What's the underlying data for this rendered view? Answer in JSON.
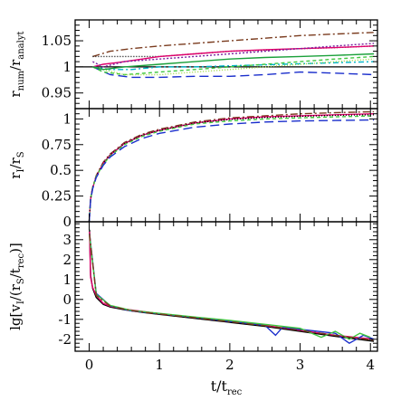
{
  "chart_data": {
    "type": "line",
    "layout": "three vertically stacked panels sharing the x axis",
    "xlabel": "t/t",
    "xlabel_sub": "rec",
    "x_range": [
      -0.2,
      4.1
    ],
    "x_ticks": [
      "0",
      "1",
      "2",
      "3",
      "4"
    ],
    "x_tick_values": [
      0,
      1,
      2,
      3,
      4
    ],
    "panels": [
      {
        "id": "top",
        "ylabel_parts": [
          "r",
          "num",
          "/r",
          "analyt"
        ],
        "y_range": [
          0.92,
          1.09
        ],
        "y_ticks": [
          "0.95",
          "1",
          "1.05"
        ],
        "y_tick_values": [
          0.95,
          1.0,
          1.05
        ],
        "reference_line": 1.0,
        "series": [
          {
            "color": "#7a3b1e",
            "dash": "8 3 2 3",
            "x": [
              0.05,
              0.3,
              0.6,
              1,
              1.5,
              2,
              2.5,
              3,
              3.5,
              4.05
            ],
            "y": [
              1.02,
              1.03,
              1.035,
              1.04,
              1.045,
              1.05,
              1.055,
              1.06,
              1.063,
              1.066
            ]
          },
          {
            "color": "#000000",
            "dash": "1 2",
            "x": [
              0.05,
              0.2,
              0.5,
              1,
              1.5,
              2,
              2.5,
              3,
              3.5,
              4.05
            ],
            "y": [
              1.02,
              1.02,
              1.02,
              1.02,
              1.025,
              1.03,
              1.032,
              1.035,
              1.037,
              1.04
            ]
          },
          {
            "color": "#e0006c",
            "dash": "",
            "x": [
              0.05,
              0.2,
              0.5,
              1,
              1.5,
              2,
              2.5,
              3,
              3.5,
              4.05
            ],
            "y": [
              1.0,
              1.005,
              1.01,
              1.02,
              1.025,
              1.03,
              1.033,
              1.035,
              1.037,
              1.04
            ]
          },
          {
            "color": "#7a1ea0",
            "dash": "2 2",
            "x": [
              0.05,
              0.2,
              0.5,
              1,
              1.5,
              2,
              2.5,
              3,
              3.5,
              4.05
            ],
            "y": [
              1.01,
              1.0,
              1.01,
              1.015,
              1.02,
              1.025,
              1.03,
              1.035,
              1.04,
              1.045
            ]
          },
          {
            "color": "#1a2ecc",
            "dash": "10 5",
            "x": [
              0.05,
              0.3,
              0.6,
              1,
              1.5,
              2,
              2.5,
              3,
              3.5,
              4.05
            ],
            "y": [
              1.0,
              0.985,
              0.98,
              0.98,
              0.982,
              0.982,
              0.985,
              0.99,
              0.988,
              0.985
            ]
          },
          {
            "color": "#00b4c8",
            "dash": "6 3 2 3",
            "x": [
              0.05,
              0.3,
              0.6,
              1,
              1.5,
              2,
              2.5,
              3,
              3.5,
              4.05
            ],
            "y": [
              1.0,
              0.995,
              0.995,
              1.0,
              1.0,
              1.002,
              1.004,
              1.006,
              1.008,
              1.01
            ]
          },
          {
            "color": "#40c840",
            "dash": "4 3",
            "x": [
              0.05,
              0.2,
              0.5,
              1,
              1.5,
              2,
              2.5,
              3,
              3.5,
              4.05
            ],
            "y": [
              1.0,
              0.99,
              0.985,
              0.99,
              0.995,
              1.0,
              1.005,
              1.01,
              1.015,
              1.02
            ]
          },
          {
            "color": "#9ad83a",
            "dash": "1 2",
            "x": [
              0.05,
              0.2,
              0.5,
              1,
              1.5,
              2,
              2.5,
              3,
              3.5,
              4.05
            ],
            "y": [
              1.0,
              0.995,
              0.985,
              0.985,
              0.99,
              0.995,
              1.0,
              1.005,
              1.01,
              1.015
            ]
          },
          {
            "color": "#1aa03a",
            "dash": "",
            "x": [
              0.05,
              0.2,
              0.5,
              1,
              1.5,
              2,
              2.5,
              3,
              3.5,
              4.05
            ],
            "y": [
              1.0,
              0.995,
              1.0,
              1.005,
              1.01,
              1.015,
              1.018,
              1.02,
              1.022,
              1.025
            ]
          }
        ]
      },
      {
        "id": "middle",
        "ylabel_parts": [
          "r",
          "I",
          "/r",
          "S"
        ],
        "y_range": [
          0.0,
          1.1
        ],
        "y_ticks": [
          "0",
          "0.25",
          "0.5",
          "0.75",
          "1"
        ],
        "y_tick_values": [
          0,
          0.25,
          0.5,
          0.75,
          1.0
        ],
        "series": [
          {
            "color": "#7a3b1e",
            "dash": "8 3 2 3",
            "x": [
              0,
              0.02,
              0.05,
              0.1,
              0.2,
              0.3,
              0.5,
              0.75,
              1,
              1.5,
              2,
              2.5,
              3,
              3.5,
              4.05
            ],
            "y": [
              0,
              0.23,
              0.34,
              0.45,
              0.58,
              0.66,
              0.77,
              0.85,
              0.9,
              0.97,
              1.01,
              1.03,
              1.05,
              1.06,
              1.07
            ]
          },
          {
            "color": "#e0006c",
            "dash": "",
            "x": [
              0,
              0.02,
              0.05,
              0.1,
              0.2,
              0.3,
              0.5,
              0.75,
              1,
              1.5,
              2,
              2.5,
              3,
              3.5,
              4.05
            ],
            "y": [
              0,
              0.22,
              0.33,
              0.44,
              0.57,
              0.65,
              0.76,
              0.84,
              0.89,
              0.96,
              1.0,
              1.02,
              1.03,
              1.04,
              1.05
            ]
          },
          {
            "color": "#000000",
            "dash": "1 2",
            "x": [
              0,
              0.02,
              0.05,
              0.1,
              0.2,
              0.3,
              0.5,
              0.75,
              1,
              1.5,
              2,
              2.5,
              3,
              3.5,
              4.05
            ],
            "y": [
              0,
              0.22,
              0.33,
              0.44,
              0.57,
              0.65,
              0.76,
              0.84,
              0.89,
              0.96,
              0.995,
              1.015,
              1.025,
              1.035,
              1.04
            ]
          },
          {
            "color": "#40c840",
            "dash": "4 3",
            "x": [
              0,
              0.02,
              0.05,
              0.1,
              0.2,
              0.3,
              0.5,
              0.75,
              1,
              1.5,
              2,
              2.5,
              3,
              3.5,
              4.05
            ],
            "y": [
              0,
              0.22,
              0.33,
              0.44,
              0.56,
              0.64,
              0.75,
              0.83,
              0.88,
              0.95,
              0.98,
              1.0,
              1.01,
              1.02,
              1.03
            ]
          },
          {
            "color": "#1a2ecc",
            "dash": "10 5",
            "x": [
              0,
              0.02,
              0.05,
              0.1,
              0.2,
              0.3,
              0.5,
              0.75,
              1,
              1.5,
              2,
              2.5,
              3,
              3.5,
              4.05
            ],
            "y": [
              0,
              0.21,
              0.32,
              0.43,
              0.55,
              0.63,
              0.73,
              0.81,
              0.86,
              0.92,
              0.95,
              0.97,
              0.98,
              0.985,
              0.99
            ]
          }
        ]
      },
      {
        "id": "bottom",
        "ylabel_parts": [
          "lg[v",
          "I",
          "/(r",
          "S",
          "/t",
          "rec",
          ")]"
        ],
        "y_range": [
          -2.6,
          3.9
        ],
        "y_ticks": [
          "-2",
          "-1",
          "0",
          "1",
          "2",
          "3"
        ],
        "y_tick_values": [
          -2,
          -1,
          0,
          1,
          2,
          3
        ],
        "series": [
          {
            "color": "#000000",
            "dash": "",
            "x": [
              0.005,
              0.02,
              0.05,
              0.1,
              0.2,
              0.3,
              0.5,
              0.75,
              1,
              1.5,
              2,
              2.5,
              3,
              3.5,
              4.05
            ],
            "y": [
              3.5,
              1.2,
              0.55,
              0.1,
              -0.25,
              -0.38,
              -0.52,
              -0.65,
              -0.75,
              -0.95,
              -1.15,
              -1.35,
              -1.6,
              -1.85,
              -2.1
            ]
          },
          {
            "color": "#e0006c",
            "dash": "",
            "x": [
              0.005,
              0.02,
              0.05,
              0.1,
              0.2,
              0.3,
              0.5,
              0.75,
              1,
              1.5,
              2,
              2.5,
              3,
              3.5,
              4.05
            ],
            "y": [
              3.4,
              1.1,
              0.6,
              0.2,
              -0.2,
              -0.35,
              -0.48,
              -0.6,
              -0.72,
              -0.9,
              -1.1,
              -1.3,
              -1.55,
              -1.8,
              -2.0
            ]
          },
          {
            "color": "#1a2ecc",
            "dash": "",
            "x": [
              0.005,
              0.1,
              0.3,
              0.6,
              1,
              1.5,
              2,
              2.5,
              2.65,
              2.75,
              3.0,
              3.5,
              3.7,
              3.9,
              4.05
            ],
            "y": [
              3.3,
              0.3,
              -0.32,
              -0.58,
              -0.72,
              -0.9,
              -1.1,
              -1.3,
              -1.8,
              -1.4,
              -1.5,
              -1.7,
              -2.2,
              -1.8,
              -2.0
            ]
          },
          {
            "color": "#40c840",
            "dash": "",
            "x": [
              0.005,
              0.1,
              0.3,
              0.6,
              1,
              1.5,
              2,
              2.5,
              3.0,
              3.3,
              3.5,
              3.7,
              3.85,
              4.0
            ],
            "y": [
              3.2,
              0.25,
              -0.3,
              -0.55,
              -0.7,
              -0.88,
              -1.05,
              -1.25,
              -1.45,
              -1.9,
              -1.6,
              -2.0,
              -1.7,
              -1.9
            ]
          },
          {
            "color": "#7a3b1e",
            "dash": "8 3 2 3",
            "x": [
              0.005,
              0.1,
              0.3,
              0.6,
              1,
              1.5,
              2,
              2.5,
              3.0,
              3.5,
              4.05
            ],
            "y": [
              3.3,
              0.2,
              -0.33,
              -0.57,
              -0.73,
              -0.92,
              -1.12,
              -1.32,
              -1.55,
              -1.8,
              -2.05
            ]
          }
        ]
      }
    ],
    "grid": false,
    "legend": "none"
  }
}
